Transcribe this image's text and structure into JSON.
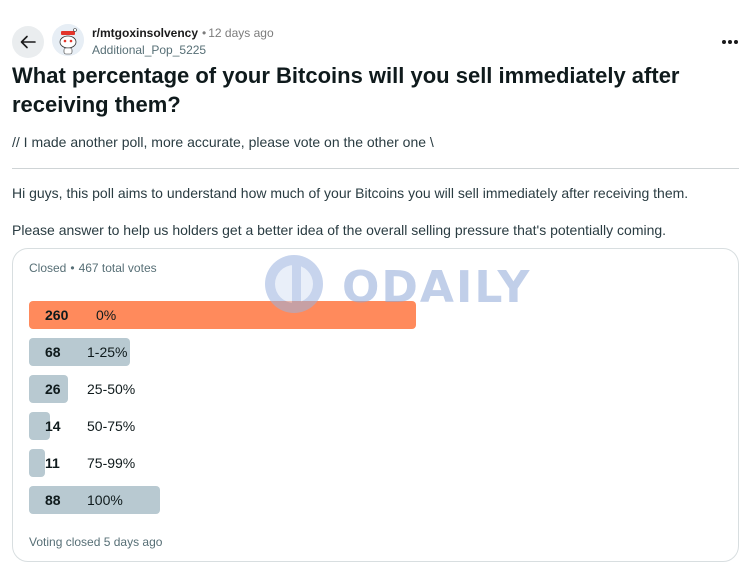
{
  "header": {
    "subreddit": "r/mtgoxinsolvency",
    "separator": "•",
    "time_ago": "12 days ago",
    "author": "Additional_Pop_5225"
  },
  "post": {
    "title": "What percentage of your Bitcoins will you sell immediately after receiving them?",
    "edit_note": "// I made another poll, more accurate, please vote on the other one \\",
    "body_p1": "Hi guys, this poll aims to understand how much of your Bitcoins you will sell immediately after receiving them.",
    "body_p2": "Please answer to help us holders get a better idea of the overall selling pressure that's potentially coming."
  },
  "poll": {
    "status": "Closed",
    "separator": "•",
    "total_votes": "467 total votes",
    "footer": "Voting closed 5 days ago",
    "winner_color": "#ff8a5c",
    "bar_color": "#b8c9d1",
    "options": [
      {
        "count": "260",
        "label": "0%",
        "votes": 260
      },
      {
        "count": "68",
        "label": "1-25%",
        "votes": 68
      },
      {
        "count": "26",
        "label": "25-50%",
        "votes": 26
      },
      {
        "count": "14",
        "label": "50-75%",
        "votes": 14
      },
      {
        "count": "11",
        "label": "75-99%",
        "votes": 11
      },
      {
        "count": "88",
        "label": "100%",
        "votes": 88
      }
    ]
  },
  "watermark": {
    "text": "ODAILY"
  }
}
